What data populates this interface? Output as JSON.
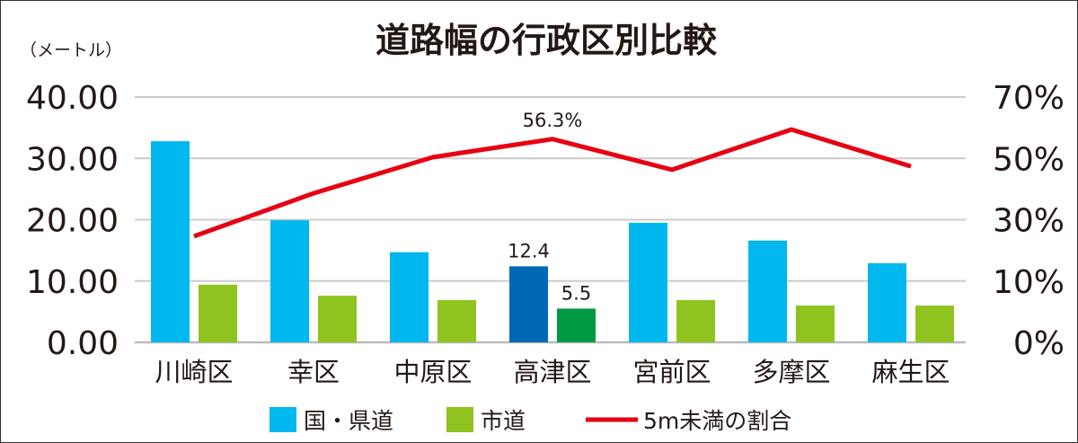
{
  "chart_data": {
    "type": "bar",
    "title": "道路幅の行政区別比較",
    "ylabel": "（メートル）",
    "ylim": [
      0,
      40
    ],
    "y_ticks": [
      "0.00",
      "10.00",
      "20.00",
      "30.00",
      "40.00"
    ],
    "y2_ticks": [
      "0%",
      "10%",
      "30%",
      "50%",
      "70%"
    ],
    "grid": true,
    "legend_position": "bottom",
    "categories": [
      "川崎区",
      "幸区",
      "中原区",
      "高津区",
      "宮前区",
      "多摩区",
      "麻生区"
    ],
    "series": [
      {
        "name": "国・県道",
        "type": "bar",
        "color": "#00b7ee",
        "highlight_color": "#0068b7",
        "values": [
          32.8,
          19.9,
          14.7,
          12.4,
          19.5,
          16.6,
          12.9
        ]
      },
      {
        "name": "市道",
        "type": "bar",
        "color": "#8fc31f",
        "highlight_color": "#009944",
        "values": [
          9.4,
          7.6,
          6.9,
          5.5,
          6.9,
          6.0,
          6.0
        ]
      },
      {
        "name": "5m未満の割合",
        "type": "line",
        "axis": "right",
        "color": "#e60012",
        "values": [
          24.6,
          38.6,
          50.4,
          56.3,
          46.3,
          59.4,
          47.4
        ]
      }
    ],
    "highlight_category": "高津区",
    "annotations": [
      "12.4",
      "5.5",
      "56.3%"
    ]
  }
}
